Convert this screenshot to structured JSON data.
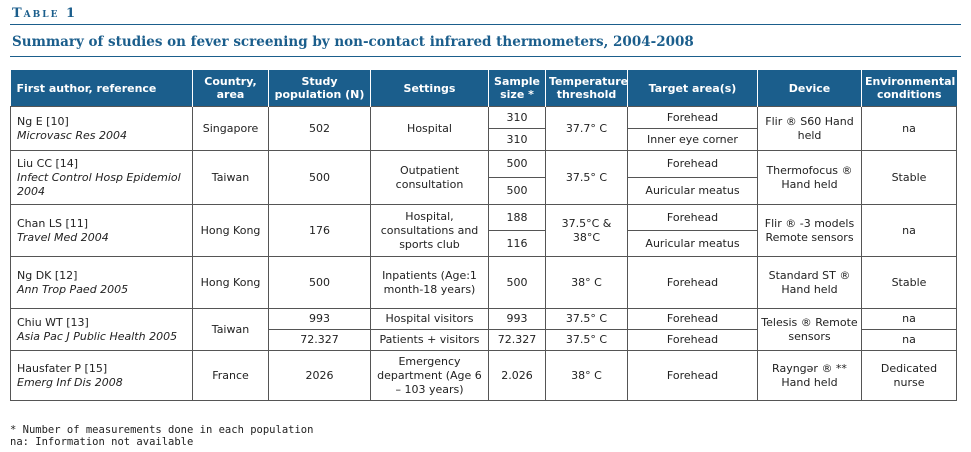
{
  "caption": "Table 1",
  "title": "Summary of studies on fever screening by non-contact infrared thermometers, 2004-2008",
  "headers": {
    "author": "First author, reference",
    "country": "Country, area",
    "population": "Study population (N)",
    "settings": "Settings",
    "sample": "Sample size *",
    "temperature": "Temperature threshold",
    "target": "Target area(s)",
    "device": "Device",
    "environment": "Environmental conditions"
  },
  "rows": [
    {
      "citation": "Ng E [10]",
      "journal": "Microvasc Res 2004",
      "country": "Singapore",
      "population": "502",
      "settings": "Hospital",
      "sample": [
        "310",
        "310"
      ],
      "temperature": "37.7° C",
      "target": [
        "Forehead",
        "Inner eye corner"
      ],
      "device": "Flir ® S60 Hand held",
      "environment": "na"
    },
    {
      "citation": "Liu CC [14]",
      "journal": "Infect Control Hosp Epidemiol 2004",
      "country": "Taiwan",
      "population": "500",
      "settings": "Outpatient consultation",
      "sample": [
        "500",
        "500"
      ],
      "temperature": "37.5° C",
      "target": [
        "Forehead",
        "Auricular meatus"
      ],
      "device": "Thermofocus ® Hand held",
      "environment": "Stable"
    },
    {
      "citation": "Chan LS [11]",
      "journal": "Travel Med 2004",
      "country": "Hong Kong",
      "population": "176",
      "settings": "Hospital, consultations and sports club",
      "sample": [
        "188",
        "116"
      ],
      "temperature": "37.5°C & 38°C",
      "target": [
        "Forehead",
        "Auricular meatus"
      ],
      "device": "Flir ® -3 models Remote sensors",
      "environment": "na"
    },
    {
      "citation": "Ng DK [12]",
      "journal": "Ann Trop Paed 2005",
      "country": "Hong Kong",
      "population": "500",
      "settings": "Inpatients (Age:1 month-18 years)",
      "sample": "500",
      "temperature": "38° C",
      "target": "Forehead",
      "device": "Standard ST ® Hand held",
      "environment": "Stable"
    },
    {
      "citation": "Chiu WT [13]",
      "journal": "Asia Pac J Public Health 2005",
      "country": "Taiwan",
      "device": "Telesis ® Remote sensors",
      "sub": [
        {
          "population": "993",
          "settings": "Hospital visitors",
          "sample": "993",
          "temperature": "37.5° C",
          "target": "Forehead",
          "environment": "na"
        },
        {
          "population": "72.327",
          "settings": "Patients + visitors",
          "sample": "72.327",
          "temperature": "37.5° C",
          "target": "Forehead",
          "environment": "na"
        }
      ]
    },
    {
      "citation": "Hausfater P [15]",
      "journal": "Emerg Inf Dis 2008",
      "country": "France",
      "population": "2026",
      "settings": "Emergency department (Age 6 – 103 years)",
      "sample": "2.026",
      "temperature": "38° C",
      "target": "Forehead",
      "device": "Rayngər ® ** Hand held",
      "environment": "Dedicated nurse"
    }
  ],
  "footnotes": [
    "* Number of measurements done in each population",
    "na: Information not available"
  ],
  "colors": {
    "accent": "#1b5e8c",
    "header_text": "#ffffff"
  }
}
